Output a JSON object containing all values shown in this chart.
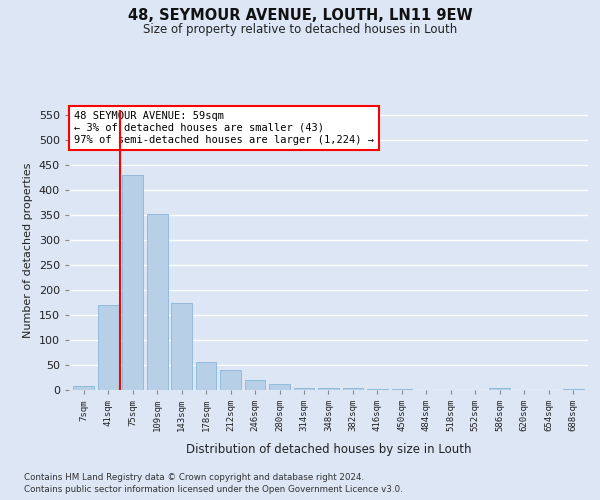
{
  "title": "48, SEYMOUR AVENUE, LOUTH, LN11 9EW",
  "subtitle": "Size of property relative to detached houses in Louth",
  "xlabel": "Distribution of detached houses by size in Louth",
  "ylabel": "Number of detached properties",
  "categories": [
    "7sqm",
    "41sqm",
    "75sqm",
    "109sqm",
    "143sqm",
    "178sqm",
    "212sqm",
    "246sqm",
    "280sqm",
    "314sqm",
    "348sqm",
    "382sqm",
    "416sqm",
    "450sqm",
    "484sqm",
    "518sqm",
    "552sqm",
    "586sqm",
    "620sqm",
    "654sqm",
    "688sqm"
  ],
  "values": [
    8,
    170,
    430,
    353,
    175,
    57,
    40,
    20,
    12,
    5,
    5,
    4,
    3,
    2,
    1,
    1,
    0,
    4,
    0,
    0,
    3
  ],
  "bar_color": "#b8cfe8",
  "bar_edge_color": "#7aafd4",
  "bar_width": 0.85,
  "vline_x": 1.5,
  "vline_color": "red",
  "annotation_text": "48 SEYMOUR AVENUE: 59sqm\n← 3% of detached houses are smaller (43)\n97% of semi-detached houses are larger (1,224) →",
  "annotation_box_color": "white",
  "annotation_box_edge_color": "red",
  "ylim": [
    0,
    560
  ],
  "yticks": [
    0,
    50,
    100,
    150,
    200,
    250,
    300,
    350,
    400,
    450,
    500,
    550
  ],
  "background_color": "#dce6f5",
  "grid_color": "white",
  "footer_line1": "Contains HM Land Registry data © Crown copyright and database right 2024.",
  "footer_line2": "Contains public sector information licensed under the Open Government Licence v3.0."
}
